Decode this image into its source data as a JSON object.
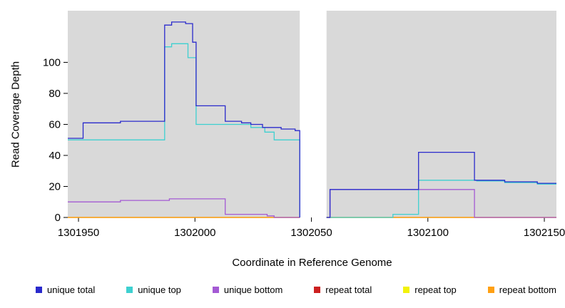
{
  "figure": {
    "xlabel": "Coordinate in Reference Genome",
    "ylabel": "Read Coverage Depth"
  },
  "chart_data": {
    "type": "line",
    "subtype": "step-coverage-plot",
    "title": "",
    "xlabel": "Coordinate in Reference Genome",
    "ylabel": "Read Coverage Depth",
    "x_ticks": [
      1301950,
      1302000,
      1302050,
      1302100,
      1302150
    ],
    "y_ticks": [
      0,
      20,
      40,
      60,
      80,
      100
    ],
    "x_range": [
      1301945.4,
      1302155.2
    ],
    "y_range": [
      0,
      133.3
    ],
    "gap_x": [
      1302045,
      1302056.5
    ],
    "plot_bg": "#d9d9d9",
    "grid": "off",
    "legend_position": "bottom",
    "series": [
      {
        "name": "unique total",
        "color": "#2a2acc",
        "segments": [
          {
            "end": 1302045,
            "points": [
              [
                1301945.4,
                51
              ],
              [
                1301952,
                61
              ],
              [
                1301968,
                62
              ],
              [
                1301987,
                124
              ],
              [
                1301990,
                126
              ],
              [
                1301996,
                125
              ],
              [
                1301999,
                113
              ],
              [
                1302000.5,
                72
              ],
              [
                1302013,
                62
              ],
              [
                1302020,
                61
              ],
              [
                1302024,
                60
              ],
              [
                1302029,
                58
              ],
              [
                1302037,
                57
              ],
              [
                1302043,
                56
              ],
              [
                1302045,
                0
              ]
            ]
          },
          {
            "end": 1302155.2,
            "points": [
              [
                1302056.5,
                0
              ],
              [
                1302058,
                18
              ],
              [
                1302096,
                42
              ],
              [
                1302120,
                24
              ],
              [
                1302133,
                23
              ],
              [
                1302147,
                22
              ]
            ]
          }
        ]
      },
      {
        "name": "unique top",
        "color": "#3ed0d0",
        "segments": [
          {
            "end": 1302045,
            "points": [
              [
                1301945.4,
                50
              ],
              [
                1301987,
                110
              ],
              [
                1301990,
                112
              ],
              [
                1301997,
                103
              ],
              [
                1302000.5,
                60
              ],
              [
                1302024,
                58
              ],
              [
                1302030,
                55
              ],
              [
                1302034,
                50
              ],
              [
                1302045,
                0
              ]
            ]
          },
          {
            "end": 1302155.2,
            "points": [
              [
                1302056.5,
                0
              ],
              [
                1302085,
                2
              ],
              [
                1302096,
                24
              ],
              [
                1302121,
                23.5
              ],
              [
                1302133,
                22.5
              ],
              [
                1302147,
                21.5
              ]
            ]
          }
        ]
      },
      {
        "name": "unique bottom",
        "color": "#a45ad4",
        "segments": [
          {
            "end": 1302045,
            "points": [
              [
                1301945.4,
                10
              ],
              [
                1301968,
                11
              ],
              [
                1301989,
                12
              ],
              [
                1302013,
                2
              ],
              [
                1302031,
                1
              ],
              [
                1302034,
                0
              ]
            ]
          },
          {
            "end": 1302155.2,
            "points": [
              [
                1302056.5,
                0
              ],
              [
                1302058,
                18
              ],
              [
                1302120,
                0
              ]
            ]
          }
        ]
      },
      {
        "name": "repeat total",
        "color": "#cc2020",
        "segments": [
          {
            "end": 1302045,
            "points": [
              [
                1301945.4,
                0
              ]
            ]
          },
          {
            "end": 1302155.2,
            "points": [
              [
                1302056.5,
                0
              ]
            ]
          }
        ]
      },
      {
        "name": "repeat top",
        "color": "#f2f20a",
        "segments": [
          {
            "end": 1302045,
            "points": [
              [
                1301945.4,
                0
              ]
            ]
          },
          {
            "end": 1302155.2,
            "points": [
              [
                1302056.5,
                0
              ]
            ]
          }
        ]
      },
      {
        "name": "repeat bottom",
        "color": "#ffa013",
        "segments": [
          {
            "end": 1302045,
            "points": [
              [
                1301945.4,
                0
              ]
            ]
          },
          {
            "end": 1302155.2,
            "points": [
              [
                1302056.5,
                0
              ]
            ]
          }
        ]
      }
    ]
  }
}
